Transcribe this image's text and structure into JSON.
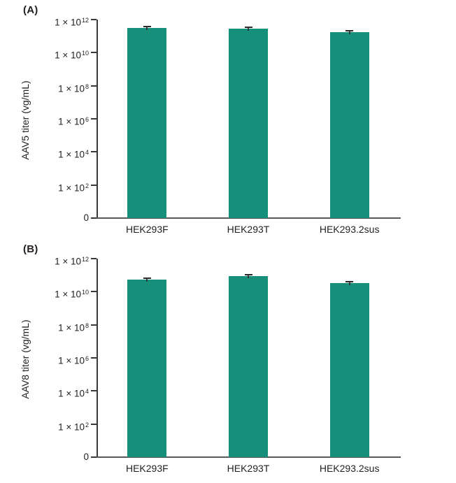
{
  "figure": {
    "background": "#ffffff"
  },
  "colors": {
    "bar_fill": "#17907B",
    "axis_line": "#3A3A3C",
    "baseline": "#58595B",
    "text": "#231F20",
    "error_bar": "#2B2B2B"
  },
  "chart_data": [
    {
      "type": "bar",
      "panel_label": "(A)",
      "ylabel": "AAV5 titer (vg/mL)",
      "xlabel": "",
      "y_scale": "log (with 0 baseline segment)",
      "ylim_log": [
        2,
        12
      ],
      "grid": false,
      "legend": "none",
      "categories": [
        "HEK293F",
        "HEK293T",
        "HEK293.2sus"
      ],
      "values": [
        300000000000.0,
        280000000000.0,
        170000000000.0
      ],
      "error_bars_visible": true,
      "y_ticks": [
        {
          "label": "0",
          "sup": ""
        },
        {
          "label": "1 × 10",
          "sup": "2"
        },
        {
          "label": "1 × 10",
          "sup": "4"
        },
        {
          "label": "1 × 10",
          "sup": "6"
        },
        {
          "label": "1 × 10",
          "sup": "8"
        },
        {
          "label": "1 × 10",
          "sup": "10"
        },
        {
          "label": "1 × 10",
          "sup": "12"
        }
      ]
    },
    {
      "type": "bar",
      "panel_label": "(B)",
      "ylabel": "AAV8 titer (vg/mL)",
      "xlabel": "",
      "y_scale": "log (with 0 baseline segment)",
      "ylim_log": [
        2,
        12
      ],
      "grid": false,
      "legend": "none",
      "categories": [
        "HEK293F",
        "HEK293T",
        "HEK293.2sus"
      ],
      "values": [
        54000000000.0,
        88000000000.0,
        33000000000.0
      ],
      "error_bars_visible": true,
      "y_ticks": [
        {
          "label": "0",
          "sup": ""
        },
        {
          "label": "1 × 10",
          "sup": "2"
        },
        {
          "label": "1 × 10",
          "sup": "4"
        },
        {
          "label": "1 × 10",
          "sup": "6"
        },
        {
          "label": "1 × 10",
          "sup": "8"
        },
        {
          "label": "1 × 10",
          "sup": "10"
        },
        {
          "label": "1 × 10",
          "sup": "12"
        }
      ]
    }
  ]
}
